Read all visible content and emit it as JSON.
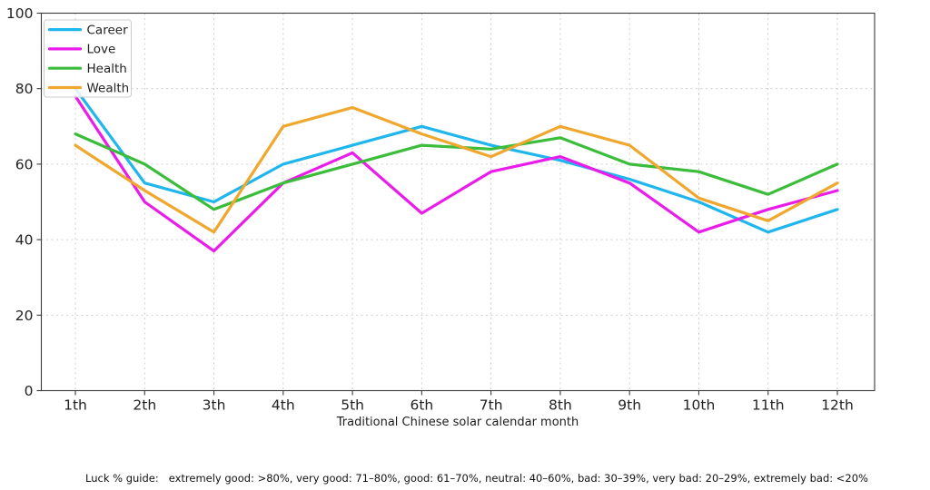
{
  "figure": {
    "xlabel": "Traditional Chinese solar calendar month",
    "caption": "Luck % guide:   extremely good: >80%, very good: 71–80%, good: 61–70%, neutral: 40–60%, bad: 30–39%, very bad: 20–29%, extremely bad: <20%"
  },
  "chart_data": {
    "type": "line",
    "title": "",
    "xlabel": "Traditional Chinese solar calendar month",
    "ylabel": "",
    "x_categories": [
      "1th",
      "2th",
      "3th",
      "4th",
      "5th",
      "6th",
      "7th",
      "8th",
      "9th",
      "10th",
      "11th",
      "12th"
    ],
    "ylim": [
      0,
      100
    ],
    "yticks": [
      0,
      20,
      40,
      60,
      80,
      100
    ],
    "grid": true,
    "legend_position": "upper-left",
    "legend_entries": [
      "Career",
      "Love",
      "Health",
      "Wealth"
    ],
    "series": [
      {
        "name": "Career",
        "color": "#1eb6ec",
        "values": [
          80,
          55,
          50,
          60,
          65,
          70,
          65,
          61,
          56,
          50,
          42,
          48
        ]
      },
      {
        "name": "Love",
        "color": "#e91ce9",
        "values": [
          78,
          50,
          37,
          55,
          63,
          47,
          58,
          62,
          55,
          42,
          48,
          53
        ]
      },
      {
        "name": "Health",
        "color": "#3bbd3b",
        "values": [
          68,
          60,
          48,
          55,
          60,
          65,
          64,
          67,
          60,
          58,
          52,
          60
        ]
      },
      {
        "name": "Wealth",
        "color": "#efa72e",
        "values": [
          65,
          53,
          42,
          70,
          75,
          68,
          62,
          70,
          65,
          51,
          45,
          55
        ]
      }
    ],
    "axis_text_color": "#222222",
    "grid_color": "#c9c9c9",
    "spine_color": "#3a3a3a"
  }
}
